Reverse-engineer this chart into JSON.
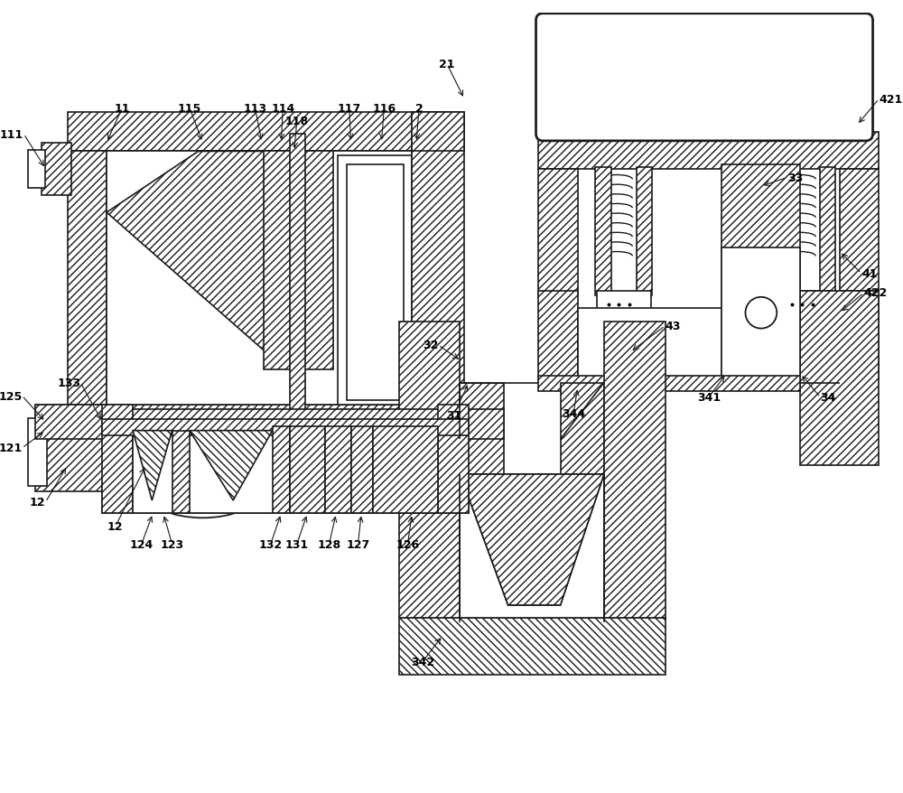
{
  "bg_color": "#ffffff",
  "lc": "#1a1a1a",
  "figsize": [
    10.0,
    8.79
  ],
  "dpi": 100,
  "hatch_dense": "////",
  "hatch_sparse": "///",
  "hatch_back": "\\\\\\\\"
}
